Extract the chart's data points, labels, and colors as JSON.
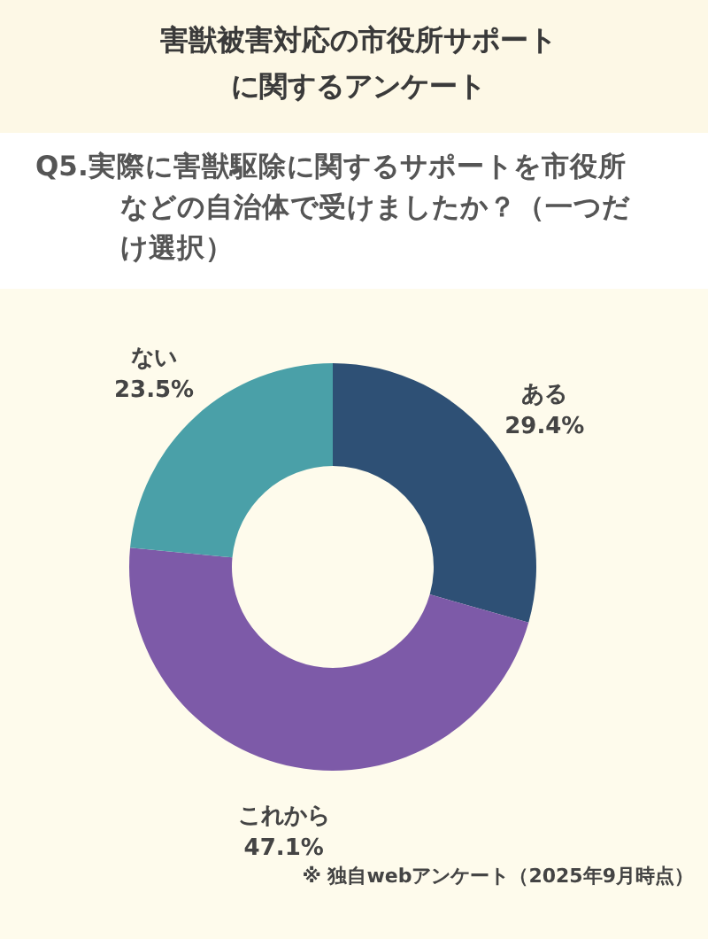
{
  "chart_data": {
    "type": "donut",
    "title": "害獣被害対応の市役所サポートに関するアンケート",
    "subtitle": "Q5.実際に害獣駆除に関するサポートを市役所などの自治体で受けましたか？（一つだけ選択）",
    "categories": [
      "ある",
      "これから",
      "ない"
    ],
    "values": [
      29.4,
      47.1,
      23.5
    ],
    "colors": [
      "#2e5075",
      "#7d5aa8",
      "#4aa0a8"
    ],
    "value_labels": [
      "29.4%",
      "47.1%",
      "23.5%"
    ],
    "annotations": [
      "※ 独自webアンケート（2025年9月時点）"
    ]
  }
}
